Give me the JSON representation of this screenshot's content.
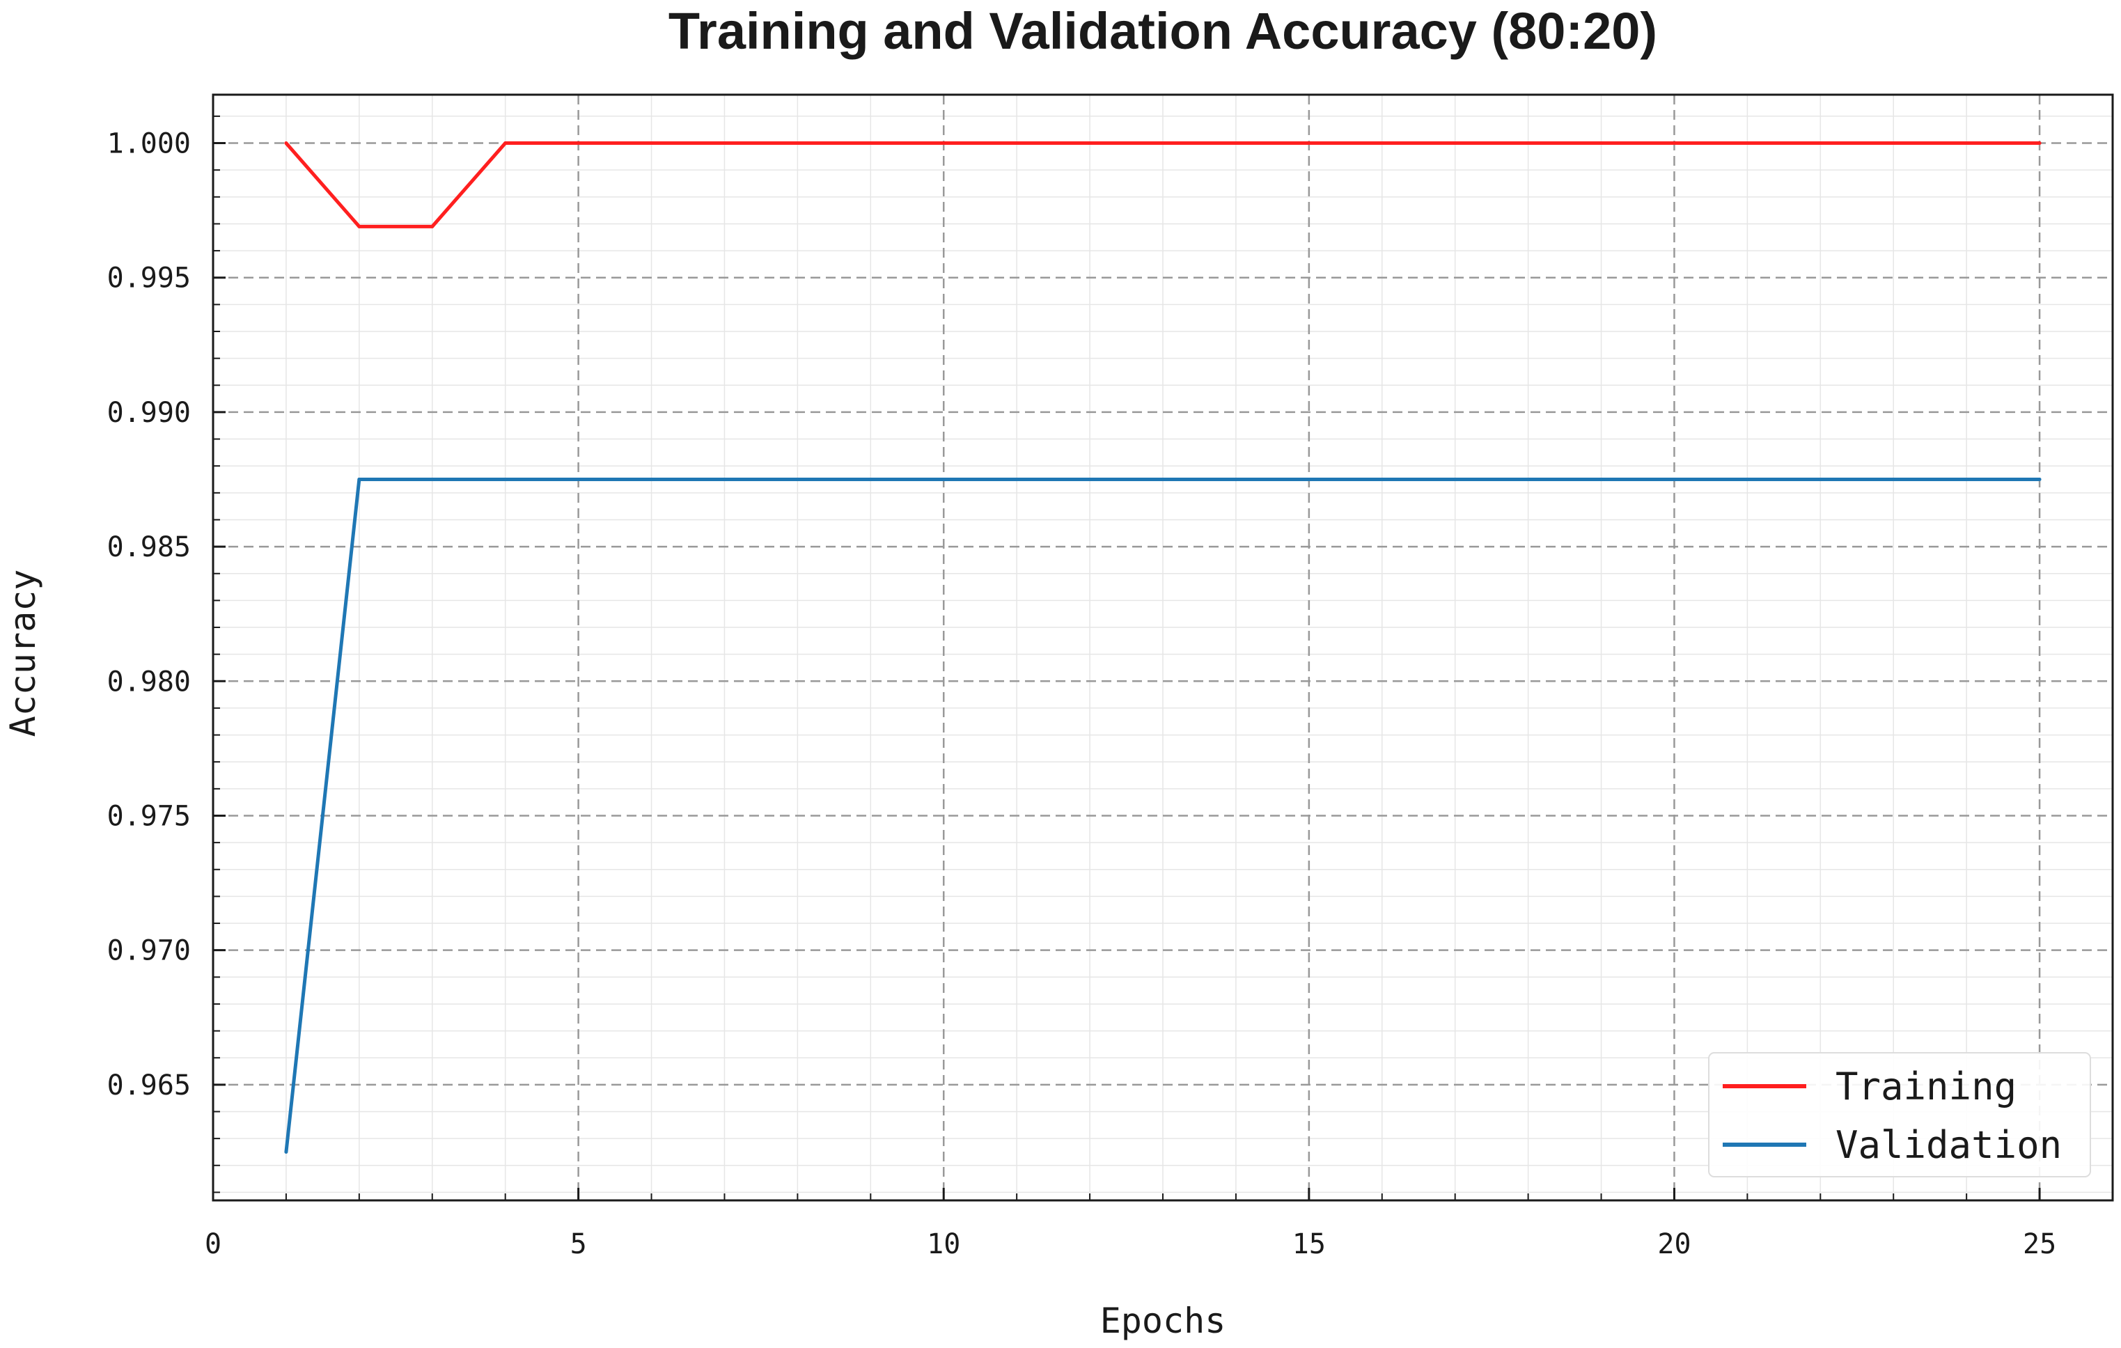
{
  "chart_data": {
    "type": "line",
    "title": "Training and Validation Accuracy (80:20)",
    "xlabel": "Epochs",
    "ylabel": "Accuracy",
    "xlim": [
      0,
      26
    ],
    "ylim": [
      0.9607,
      1.0018
    ],
    "x_ticks": [
      0,
      5,
      10,
      15,
      20,
      25
    ],
    "y_ticks": [
      0.965,
      0.97,
      0.975,
      0.98,
      0.985,
      0.99,
      0.995,
      1.0
    ],
    "x_tick_labels": [
      "0",
      "5",
      "10",
      "15",
      "20",
      "25"
    ],
    "y_tick_labels": [
      "0.965",
      "0.970",
      "0.975",
      "0.980",
      "0.985",
      "0.990",
      "0.995",
      "1.000"
    ],
    "grid": true,
    "legend_position": "bottom-right",
    "x": [
      1,
      2,
      3,
      4,
      5,
      6,
      7,
      8,
      9,
      10,
      11,
      12,
      13,
      14,
      15,
      16,
      17,
      18,
      19,
      20,
      21,
      22,
      23,
      24,
      25
    ],
    "series": [
      {
        "name": "Training",
        "color": "#ff1f1f",
        "values": [
          1.0,
          0.9969,
          0.9969,
          1.0,
          1.0,
          1.0,
          1.0,
          1.0,
          1.0,
          1.0,
          1.0,
          1.0,
          1.0,
          1.0,
          1.0,
          1.0,
          1.0,
          1.0,
          1.0,
          1.0,
          1.0,
          1.0,
          1.0,
          1.0,
          1.0
        ]
      },
      {
        "name": "Validation",
        "color": "#1f77b4",
        "values": [
          0.9625,
          0.9875,
          0.9875,
          0.9875,
          0.9875,
          0.9875,
          0.9875,
          0.9875,
          0.9875,
          0.9875,
          0.9875,
          0.9875,
          0.9875,
          0.9875,
          0.9875,
          0.9875,
          0.9875,
          0.9875,
          0.9875,
          0.9875,
          0.9875,
          0.9875,
          0.9875,
          0.9875,
          0.9875
        ]
      }
    ]
  }
}
